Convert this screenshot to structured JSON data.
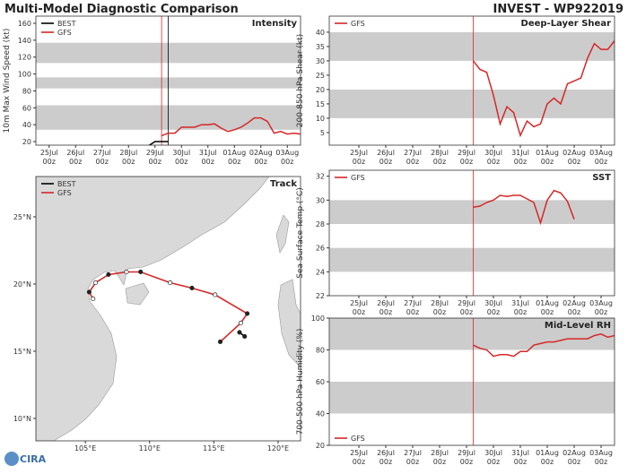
{
  "header": {
    "title": "Multi-Model Diagnostic Comparison",
    "storm": "INVEST - WP922019",
    "logo": "CIRA"
  },
  "chart_data": [
    {
      "type": "line",
      "title": "Intensity",
      "ylabel": "10m Max Wind Speed (kt)",
      "legend": "upper left",
      "xlim": [
        -0.5,
        9.5
      ],
      "xticks": [
        {
          "value": 0,
          "label": "25Jul\n00z"
        },
        {
          "value": 1,
          "label": "26Jul\n00z"
        },
        {
          "value": 2,
          "label": "27Jul\n00z"
        },
        {
          "value": 3,
          "label": "28Jul\n00z"
        },
        {
          "value": 4,
          "label": "29Jul\n00z"
        },
        {
          "value": 5,
          "label": "30Jul\n00z"
        },
        {
          "value": 6,
          "label": "31Jul\n00z"
        },
        {
          "value": 7,
          "label": "01Aug\n00z"
        },
        {
          "value": 8,
          "label": "02Aug\n00z"
        },
        {
          "value": 9,
          "label": "03Aug\n00z"
        }
      ],
      "ylim": [
        15.8,
        168.5
      ],
      "yticks": [
        20,
        40,
        60,
        80,
        100,
        120,
        140,
        160
      ],
      "bands": [
        [
          34,
          63
        ],
        [
          83,
          96
        ],
        [
          113,
          137
        ]
      ],
      "band_color": "#cccccc",
      "vlines": [
        {
          "x": 4.25,
          "color": "#d62728"
        },
        {
          "x": 4.5,
          "color": "#000000"
        }
      ],
      "series": [
        {
          "name": "BEST",
          "color": "#000000",
          "x": [
            3.75,
            4.0,
            4.25,
            4.5
          ],
          "values": [
            15,
            20,
            20,
            20
          ]
        },
        {
          "name": "GFS",
          "color": "#d62728",
          "x": [
            4.25,
            4.5,
            4.75,
            5.0,
            5.25,
            5.5,
            5.75,
            6.0,
            6.25,
            6.5,
            6.75,
            7.0,
            7.25,
            7.5,
            7.75,
            8.0,
            8.25,
            8.5,
            8.75,
            9.0,
            9.25,
            9.5
          ],
          "values": [
            27,
            30,
            30,
            37,
            37,
            37,
            40,
            40,
            41,
            36,
            32,
            34,
            37,
            42,
            48,
            48,
            44,
            30,
            32,
            29,
            30,
            29
          ]
        }
      ]
    },
    {
      "type": "track",
      "title": "Track",
      "legend": "upper left",
      "xlim": [
        101.15,
        121.75
      ],
      "xticks": [
        {
          "value": 105,
          "label": "105°E"
        },
        {
          "value": 110,
          "label": "110°E"
        },
        {
          "value": 115,
          "label": "115°E"
        },
        {
          "value": 120,
          "label": "120°E"
        }
      ],
      "ylim": [
        8.33,
        28
      ],
      "yticks": [
        {
          "value": 10,
          "label": "10°N"
        },
        {
          "value": 15,
          "label": "15°N"
        },
        {
          "value": 20,
          "label": "20°N"
        },
        {
          "value": 25,
          "label": "25°N"
        }
      ],
      "series": [
        {
          "name": "BEST",
          "color": "#000000",
          "lon": [
            117.4,
            117.0
          ],
          "lat": [
            16.1,
            16.4
          ]
        },
        {
          "name": "GFS",
          "color": "#d62728",
          "lon": [
            115.5,
            117.1,
            117.6,
            115.1,
            113.3,
            111.6,
            109.3,
            108.2,
            106.8,
            105.8,
            105.3,
            105.6
          ],
          "lat": [
            15.7,
            17.1,
            17.8,
            19.2,
            19.7,
            20.1,
            20.9,
            20.9,
            20.7,
            20.1,
            19.4,
            18.9
          ]
        }
      ]
    },
    {
      "type": "line",
      "title": "Deep-Layer Shear",
      "ylabel": "200-850 hPa Shear (kt)",
      "legend": "upper left",
      "xlim": [
        -1.1,
        9.5
      ],
      "xticks": [
        {
          "value": 0,
          "label": "25Jul\n00z"
        },
        {
          "value": 1,
          "label": "26Jul\n00z"
        },
        {
          "value": 2,
          "label": "27Jul\n00z"
        },
        {
          "value": 3,
          "label": "28Jul\n00z"
        },
        {
          "value": 4,
          "label": "29Jul\n00z"
        },
        {
          "value": 5,
          "label": "30Jul\n00z"
        },
        {
          "value": 6,
          "label": "31Jul\n00z"
        },
        {
          "value": 7,
          "label": "01Aug\n00z"
        },
        {
          "value": 8,
          "label": "02Aug\n00z"
        },
        {
          "value": 9,
          "label": "03Aug\n00z"
        }
      ],
      "ylim": [
        0.6,
        45.6
      ],
      "yticks": [
        5,
        10,
        15,
        20,
        25,
        30,
        35,
        40
      ],
      "bands": [
        [
          10,
          20
        ],
        [
          30,
          40
        ]
      ],
      "band_color": "#cccccc",
      "vlines": [
        {
          "x": 4.25,
          "color": "#d62728"
        }
      ],
      "series": [
        {
          "name": "GFS",
          "color": "#d62728",
          "x": [
            4.25,
            4.5,
            4.75,
            5.0,
            5.25,
            5.5,
            5.75,
            6.0,
            6.25,
            6.5,
            6.75,
            7.0,
            7.25,
            7.5,
            7.75,
            8.0,
            8.25,
            8.5,
            8.75,
            9.0,
            9.25,
            9.5
          ],
          "values": [
            30,
            27,
            26,
            18,
            8,
            14,
            12,
            4,
            9,
            7,
            8,
            15,
            17,
            15,
            22,
            23,
            24,
            31,
            36,
            34,
            34,
            37
          ]
        }
      ]
    },
    {
      "type": "line",
      "title": "SST",
      "ylabel": "Sea Surface Temp (°C)",
      "legend": "upper left",
      "xlim": [
        -1.1,
        9.5
      ],
      "xticks": [
        {
          "value": 0,
          "label": "25Jul\n00z"
        },
        {
          "value": 1,
          "label": "26Jul\n00z"
        },
        {
          "value": 2,
          "label": "27Jul\n00z"
        },
        {
          "value": 3,
          "label": "28Jul\n00z"
        },
        {
          "value": 4,
          "label": "29Jul\n00z"
        },
        {
          "value": 5,
          "label": "30Jul\n00z"
        },
        {
          "value": 6,
          "label": "31Jul\n00z"
        },
        {
          "value": 7,
          "label": "01Aug\n00z"
        },
        {
          "value": 8,
          "label": "02Aug\n00z"
        },
        {
          "value": 9,
          "label": "03Aug\n00z"
        }
      ],
      "ylim": [
        22,
        32.5
      ],
      "yticks": [
        22,
        24,
        26,
        28,
        30,
        32
      ],
      "bands": [
        [
          24,
          26
        ],
        [
          28,
          30
        ]
      ],
      "band_color": "#cccccc",
      "vlines": [
        {
          "x": 4.25,
          "color": "#d62728"
        }
      ],
      "series": [
        {
          "name": "GFS",
          "color": "#d62728",
          "x": [
            4.25,
            4.5,
            4.75,
            5.0,
            5.25,
            5.5,
            5.75,
            6.0,
            6.25,
            6.5,
            6.75,
            7.0,
            7.25,
            7.5,
            7.75,
            8.0
          ],
          "values": [
            29.4,
            29.5,
            29.8,
            30.0,
            30.4,
            30.3,
            30.4,
            30.4,
            30.1,
            29.8,
            28.1,
            30.0,
            30.8,
            30.6,
            29.9,
            28.4
          ]
        }
      ]
    },
    {
      "type": "line",
      "title": "Mid-Level RH",
      "ylabel": "700-500 hPa Humidity (%)",
      "legend": "lower left",
      "xlim": [
        -1.1,
        9.5
      ],
      "xticks": [
        {
          "value": 0,
          "label": "25Jul\n00z"
        },
        {
          "value": 1,
          "label": "26Jul\n00z"
        },
        {
          "value": 2,
          "label": "27Jul\n00z"
        },
        {
          "value": 3,
          "label": "28Jul\n00z"
        },
        {
          "value": 4,
          "label": "29Jul\n00z"
        },
        {
          "value": 5,
          "label": "30Jul\n00z"
        },
        {
          "value": 6,
          "label": "31Jul\n00z"
        },
        {
          "value": 7,
          "label": "01Aug\n00z"
        },
        {
          "value": 8,
          "label": "02Aug\n00z"
        },
        {
          "value": 9,
          "label": "03Aug\n00z"
        }
      ],
      "ylim": [
        20,
        100
      ],
      "yticks": [
        20,
        40,
        60,
        80,
        100
      ],
      "bands": [
        [
          40,
          60
        ],
        [
          80,
          100
        ]
      ],
      "band_color": "#cccccc",
      "vlines": [
        {
          "x": 4.25,
          "color": "#d62728"
        }
      ],
      "series": [
        {
          "name": "GFS",
          "color": "#d62728",
          "x": [
            4.25,
            4.5,
            4.75,
            5.0,
            5.25,
            5.5,
            5.75,
            6.0,
            6.25,
            6.5,
            6.75,
            7.0,
            7.25,
            7.5,
            7.75,
            8.0,
            8.25,
            8.5,
            8.75,
            9.0,
            9.25,
            9.5
          ],
          "values": [
            83,
            81,
            80,
            76,
            77,
            77,
            76,
            79,
            79,
            83,
            84,
            85,
            85,
            86,
            87,
            87,
            87,
            87,
            89,
            90,
            88,
            89
          ]
        }
      ]
    }
  ]
}
